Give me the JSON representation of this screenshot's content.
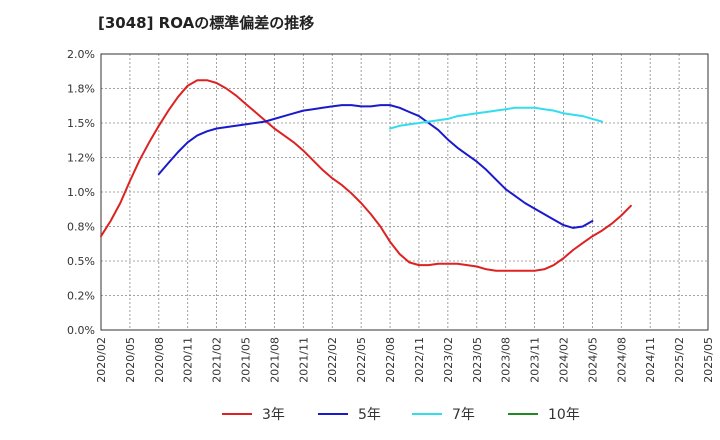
{
  "chart_data": {
    "type": "line",
    "title": "[3048]  ROAの標準偏差の推移",
    "xlabel": "",
    "ylabel": "",
    "ylim": [
      0,
      2.0
    ],
    "y_ticks": [
      "0.0%",
      "0.2%",
      "0.5%",
      "0.8%",
      "1.0%",
      "1.2%",
      "1.5%",
      "1.8%",
      "2.0%"
    ],
    "x_ticks": [
      "2020/02",
      "2020/05",
      "2020/08",
      "2020/11",
      "2021/02",
      "2021/05",
      "2021/08",
      "2021/11",
      "2022/02",
      "2022/05",
      "2022/08",
      "2022/11",
      "2023/02",
      "2023/05",
      "2023/08",
      "2023/11",
      "2024/02",
      "2024/05",
      "2024/08",
      "2024/11",
      "2025/02",
      "2025/05"
    ],
    "grid": true,
    "legend_position": "bottom",
    "series": [
      {
        "name": "3年",
        "color": "#dd2222",
        "start": "2020/02",
        "values": [
          0.68,
          0.79,
          0.92,
          1.08,
          1.23,
          1.36,
          1.48,
          1.59,
          1.69,
          1.77,
          1.81,
          1.81,
          1.79,
          1.75,
          1.7,
          1.64,
          1.58,
          1.52,
          1.46,
          1.41,
          1.36,
          1.3,
          1.23,
          1.16,
          1.1,
          1.05,
          0.99,
          0.92,
          0.84,
          0.75,
          0.64,
          0.55,
          0.49,
          0.47,
          0.47,
          0.48,
          0.48,
          0.48,
          0.47,
          0.46,
          0.44,
          0.43,
          0.43,
          0.43,
          0.43,
          0.43,
          0.44,
          0.47,
          0.52,
          0.58,
          0.63,
          0.68,
          0.72,
          0.77,
          0.83,
          0.9
        ]
      },
      {
        "name": "5年",
        "color": "#1a1acc",
        "start": "2020/08",
        "values": [
          1.13,
          1.21,
          1.29,
          1.36,
          1.41,
          1.44,
          1.46,
          1.47,
          1.48,
          1.49,
          1.5,
          1.51,
          1.53,
          1.55,
          1.57,
          1.59,
          1.6,
          1.61,
          1.62,
          1.63,
          1.63,
          1.62,
          1.62,
          1.63,
          1.63,
          1.61,
          1.58,
          1.55,
          1.5,
          1.45,
          1.38,
          1.32,
          1.27,
          1.22,
          1.16,
          1.09,
          1.02,
          0.97,
          0.92,
          0.88,
          0.84,
          0.8,
          0.76,
          0.74,
          0.75,
          0.79
        ]
      },
      {
        "name": "7年",
        "color": "#33ddee",
        "start": "2022/08",
        "values": [
          1.46,
          1.48,
          1.49,
          1.5,
          1.51,
          1.52,
          1.53,
          1.55,
          1.56,
          1.57,
          1.58,
          1.59,
          1.6,
          1.61,
          1.61,
          1.61,
          1.6,
          1.59,
          1.57,
          1.56,
          1.55,
          1.53,
          1.51
        ]
      },
      {
        "name": "10年",
        "color": "#228822",
        "start": "2025/02",
        "values": []
      }
    ]
  }
}
